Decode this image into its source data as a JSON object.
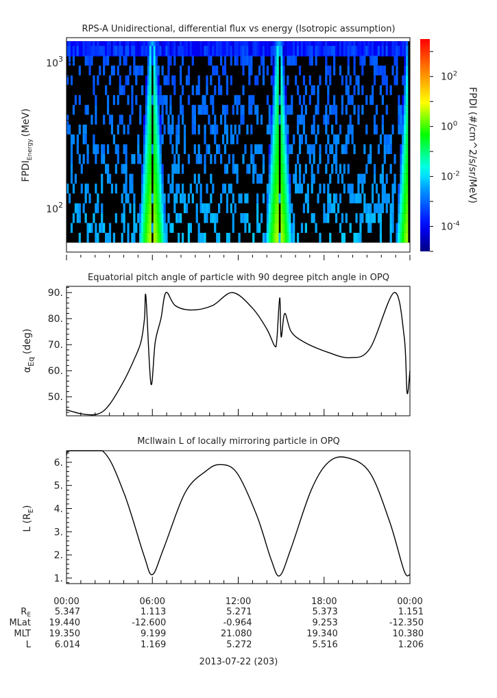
{
  "chart_data": [
    {
      "type": "heatmap",
      "title": "RPS-A Unidirectional, differential flux vs energy (Isotropic assumption)",
      "ylabel": "FPDI",
      "ylabel_sub": "Energy",
      "ylabel_unit": "(MeV)",
      "yscale": "log",
      "ylim": [
        50,
        1480
      ],
      "xlim_hours": [
        0,
        24
      ],
      "yticks": [
        {
          "base": "10",
          "exp": "2",
          "value": 100
        },
        {
          "base": "10",
          "exp": "3",
          "value": 1000
        }
      ],
      "energy_rows": 20,
      "energy_range_mev": [
        58,
        1300
      ],
      "integral_channel_mev": [
        1100,
        1400
      ],
      "colorbar": {
        "label": "FPDI (#/cm^2/s/sr/MeV)",
        "scale": "log",
        "range_log10": [
          -5,
          3.5
        ],
        "ticks": [
          {
            "base": "10",
            "exp": "2",
            "value": 2
          },
          {
            "base": "10",
            "exp": "0",
            "value": 0
          },
          {
            "base": "10",
            "exp": "-2",
            "value": -2
          },
          {
            "base": "10",
            "exp": "-4",
            "value": -4
          }
        ]
      },
      "background_log10_flux": [
        -3.3,
        -2.3
      ],
      "flux_bands": [
        {
          "center_hour": 6.0,
          "peak_log10_low_energy": 0.6,
          "peak_log10_high_energy": -1.4
        },
        {
          "center_hour": 14.85,
          "peak_log10_low_energy": 0.6,
          "peak_log10_high_energy": -1.4
        },
        {
          "center_hour": 24.0,
          "peak_log10_low_energy": 0.6,
          "peak_log10_high_energy": -1.4
        }
      ]
    },
    {
      "type": "line",
      "title": "Equatorial pitch angle of particle with 90 degree pitch angle in OPQ",
      "ylabel": "α",
      "ylabel_sub": "Eq",
      "ylabel_unit": "(deg)",
      "ylim": [
        42.7,
        92.4
      ],
      "yticks": [
        "50.",
        "60.",
        "70.",
        "80.",
        "90."
      ],
      "x_hours": [
        0,
        1.1,
        2.2,
        3.0,
        4.0,
        4.7,
        5.2,
        5.45,
        5.55,
        5.9,
        6.2,
        6.6,
        6.95,
        7.6,
        8.75,
        10.2,
        11.6,
        13.0,
        14.0,
        14.55,
        14.7,
        14.9,
        15.0,
        15.25,
        15.7,
        16.6,
        18.3,
        19.8,
        21.2,
        22.9,
        23.6,
        23.8,
        24.0
      ],
      "y": [
        45,
        43.4,
        43.4,
        47,
        56,
        64,
        71,
        80,
        88.5,
        55,
        71,
        80,
        90,
        85,
        83.3,
        85,
        90,
        84,
        76,
        69.5,
        72,
        88,
        73,
        82,
        75,
        71,
        67,
        65,
        68.5,
        90,
        73,
        51.5,
        60
      ]
    },
    {
      "type": "line",
      "title": "McIlwain L of locally mirroring particle in OPQ",
      "ylabel": "L (R",
      "ylabel_sub": "E",
      "ylabel_unit": ")",
      "ylim": [
        0.76,
        6.5
      ],
      "yticks": [
        "1.",
        "2.",
        "3.",
        "4.",
        "5.",
        "6."
      ],
      "x_hours": [
        0,
        0.3,
        2.5,
        4.0,
        5.4,
        6.0,
        6.8,
        8.3,
        9.7,
        10.7,
        11.9,
        13.3,
        14.3,
        14.9,
        15.7,
        17.1,
        18.3,
        19.6,
        21.2,
        22.6,
        23.6,
        24.0
      ],
      "y": [
        6.3,
        6.5,
        6.5,
        4.7,
        2.0,
        1.15,
        2.3,
        4.7,
        5.6,
        5.9,
        5.55,
        3.7,
        1.8,
        1.1,
        2.3,
        4.8,
        6.0,
        6.2,
        5.55,
        3.4,
        1.3,
        1.15
      ]
    }
  ],
  "x_axis": {
    "tick_labels": [
      "00:00",
      "06:00",
      "12:00",
      "18:00",
      "00:00"
    ],
    "ephemeris": [
      {
        "label": "R",
        "label_sub": "E",
        "values": [
          "5.347",
          "1.113",
          "5.271",
          "5.373",
          "1.151"
        ]
      },
      {
        "label": "MLat",
        "label_sub": "",
        "values": [
          "19.440",
          "-12.600",
          "-0.964",
          "9.253",
          "-12.350"
        ]
      },
      {
        "label": "MLT",
        "label_sub": "",
        "values": [
          "19.350",
          "9.199",
          "21.080",
          "19.340",
          "10.380"
        ]
      },
      {
        "label": "L",
        "label_sub": "",
        "values": [
          "6.014",
          "1.169",
          "5.272",
          "5.516",
          "1.206"
        ]
      }
    ],
    "date_label": "2013-07-22 (203)"
  }
}
